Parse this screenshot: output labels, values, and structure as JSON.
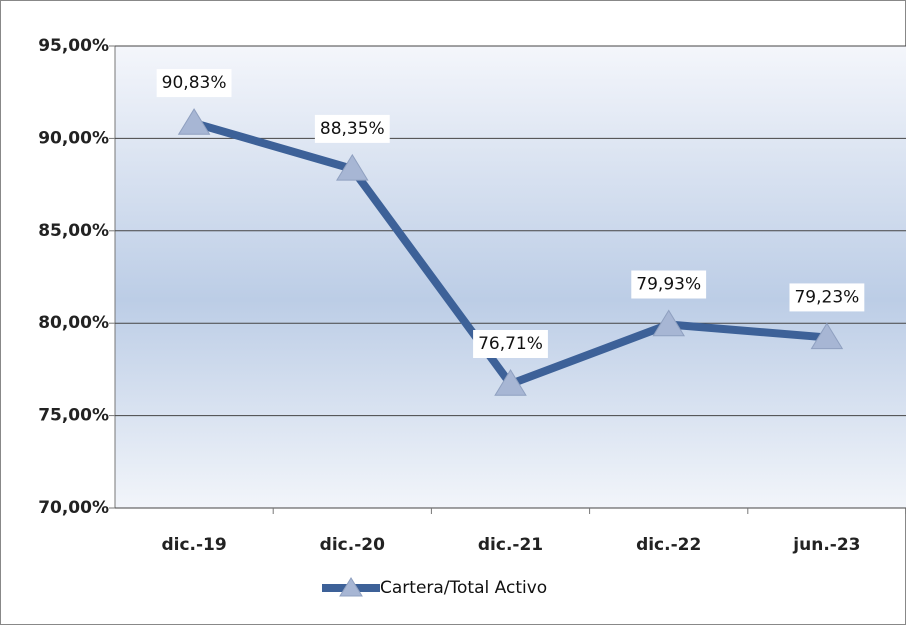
{
  "chart_data": {
    "type": "line",
    "categories": [
      "dic.-19",
      "dic.-20",
      "dic.-21",
      "dic.-22",
      "jun.-23"
    ],
    "series": [
      {
        "name": "Cartera/Total Activo",
        "color": "#3d6198",
        "marker_color": "#a7b6d4",
        "values": [
          90.83,
          88.35,
          76.71,
          79.93,
          79.23
        ],
        "value_labels": [
          "90,83%",
          "88,35%",
          "76,71%",
          "79,93%",
          "79,23%"
        ]
      }
    ],
    "ylim": [
      70,
      95
    ],
    "yticks": [
      {
        "value": 70,
        "label": "70,00%"
      },
      {
        "value": 75,
        "label": "75,00%"
      },
      {
        "value": 80,
        "label": "80,00%"
      },
      {
        "value": 85,
        "label": "85,00%"
      },
      {
        "value": 90,
        "label": "90,00%"
      },
      {
        "value": 95,
        "label": "95,00%"
      }
    ],
    "grid": true,
    "legend": "bottom"
  }
}
